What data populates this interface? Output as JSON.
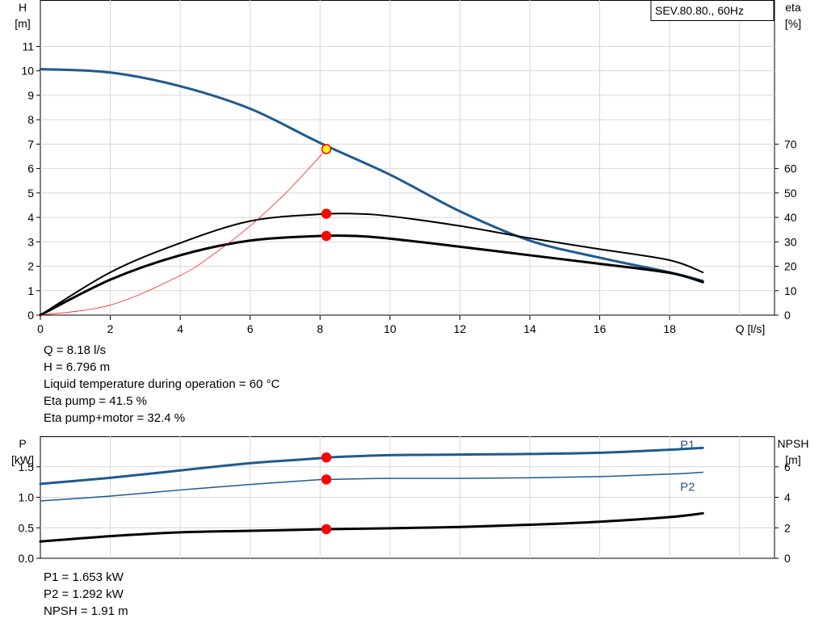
{
  "chart_data": [
    {
      "type": "line",
      "title": "SEV.80.80., 60Hz",
      "x_axis": {
        "label": "Q [l/s]",
        "range": [
          0,
          21
        ],
        "ticks": [
          0,
          2,
          4,
          6,
          8,
          10,
          12,
          14,
          16,
          18
        ]
      },
      "y_axis_left": {
        "label_top": "H",
        "label_bottom": "[m]",
        "range": [
          0,
          12.9
        ],
        "ticks": [
          0,
          1,
          2,
          3,
          4,
          5,
          6,
          7,
          8,
          9,
          10,
          11
        ]
      },
      "y_axis_right": {
        "label_top": "eta",
        "label_bottom": "[%]",
        "range": [
          0,
          129
        ],
        "ticks": [
          0,
          10,
          20,
          30,
          40,
          50,
          60,
          70
        ]
      },
      "grid": true,
      "series": [
        {
          "axis": "left",
          "color": "#1f5a8f",
          "width": 3,
          "points": [
            [
              0,
              10.07
            ],
            [
              2,
              9.93
            ],
            [
              4,
              9.37
            ],
            [
              6,
              8.45
            ],
            [
              8,
              7.05
            ],
            [
              10,
              5.75
            ],
            [
              12,
              4.25
            ],
            [
              14,
              3.05
            ],
            [
              16,
              2.35
            ],
            [
              18,
              1.75
            ],
            [
              18.95,
              1.4
            ]
          ]
        },
        {
          "axis": "right",
          "color": "#000000",
          "width": 2,
          "points": [
            [
              0,
              0
            ],
            [
              2,
              17.5
            ],
            [
              4,
              29.5
            ],
            [
              6,
              38.5
            ],
            [
              8,
              41.3
            ],
            [
              9,
              41.5
            ],
            [
              10,
              40.5
            ],
            [
              12,
              36.5
            ],
            [
              14,
              31.5
            ],
            [
              16,
              27
            ],
            [
              18,
              22.5
            ],
            [
              18.95,
              17.5
            ]
          ]
        },
        {
          "axis": "right",
          "color": "#000000",
          "width": 3,
          "points": [
            [
              0,
              0
            ],
            [
              2,
              14.5
            ],
            [
              4,
              24.5
            ],
            [
              6,
              30.5
            ],
            [
              8,
              32.4
            ],
            [
              9,
              32.4
            ],
            [
              10,
              31.3
            ],
            [
              12,
              28
            ],
            [
              14,
              24.5
            ],
            [
              16,
              21
            ],
            [
              18,
              17.3
            ],
            [
              18.95,
              13.5
            ]
          ]
        },
        {
          "axis": "left",
          "color": "#ff0000",
          "width": 0.7,
          "points": [
            [
              0,
              0
            ],
            [
              2,
              0.41
            ],
            [
              4,
              1.62
            ],
            [
              5,
              2.54
            ],
            [
              6,
              3.65
            ],
            [
              7,
              4.97
            ],
            [
              8,
              6.5
            ],
            [
              8.18,
              6.796
            ]
          ]
        }
      ],
      "markers": [
        {
          "axis": "left",
          "x": 8.18,
          "y": 6.796,
          "fill": "#ffff00",
          "stroke": "#ff0000"
        },
        {
          "axis": "right",
          "x": 8.18,
          "y": 41.5,
          "fill": "#ff0000",
          "stroke": "#ff0000"
        },
        {
          "axis": "right",
          "x": 8.18,
          "y": 32.4,
          "fill": "#ff0000",
          "stroke": "#ff0000"
        }
      ]
    },
    {
      "type": "line",
      "x_axis": {
        "range": [
          0,
          21
        ]
      },
      "y_axis_left": {
        "label_top": "P",
        "label_bottom": "[kW]",
        "range": [
          0,
          2.0
        ],
        "ticks": [
          0.0,
          0.5,
          1.0,
          1.5
        ],
        "tick_labels": [
          "0.0",
          "0.5",
          "1.0",
          "1.5"
        ]
      },
      "y_axis_right": {
        "label_top": "NPSH",
        "label_bottom": "[m]",
        "range": [
          0,
          8
        ],
        "ticks": [
          0,
          2,
          4,
          6
        ]
      },
      "grid": true,
      "series": [
        {
          "name": "P1",
          "axis": "left",
          "color": "#1f5a8f",
          "width": 3,
          "points": [
            [
              0,
              1.22
            ],
            [
              2,
              1.32
            ],
            [
              4,
              1.44
            ],
            [
              6,
              1.56
            ],
            [
              8,
              1.64
            ],
            [
              8.18,
              1.653
            ],
            [
              10,
              1.69
            ],
            [
              12,
              1.7
            ],
            [
              14,
              1.71
            ],
            [
              16,
              1.73
            ],
            [
              18,
              1.78
            ],
            [
              18.95,
              1.81
            ]
          ]
        },
        {
          "name": "P2",
          "axis": "left",
          "color": "#1f5a8f",
          "width": 1.5,
          "points": [
            [
              0,
              0.94
            ],
            [
              2,
              1.02
            ],
            [
              4,
              1.12
            ],
            [
              6,
              1.21
            ],
            [
              8,
              1.29
            ],
            [
              8.18,
              1.292
            ],
            [
              10,
              1.31
            ],
            [
              12,
              1.31
            ],
            [
              14,
              1.32
            ],
            [
              16,
              1.34
            ],
            [
              18,
              1.38
            ],
            [
              18.95,
              1.41
            ]
          ]
        },
        {
          "axis": "right",
          "color": "#000000",
          "width": 3,
          "points": [
            [
              0,
              1.1
            ],
            [
              2,
              1.45
            ],
            [
              4,
              1.7
            ],
            [
              6,
              1.8
            ],
            [
              8,
              1.9
            ],
            [
              8.18,
              1.91
            ],
            [
              10,
              1.97
            ],
            [
              12,
              2.05
            ],
            [
              14,
              2.2
            ],
            [
              16,
              2.4
            ],
            [
              18,
              2.7
            ],
            [
              18.95,
              2.95
            ]
          ]
        }
      ],
      "markers": [
        {
          "axis": "left",
          "x": 8.18,
          "y": 1.653,
          "fill": "#ff0000",
          "stroke": "#ff0000"
        },
        {
          "axis": "left",
          "x": 8.18,
          "y": 1.292,
          "fill": "#ff0000",
          "stroke": "#ff0000"
        },
        {
          "axis": "right",
          "x": 8.18,
          "y": 1.91,
          "fill": "#ff0000",
          "stroke": "#ff0000"
        }
      ],
      "series_labels": [
        {
          "text": "P1",
          "x": 18.3,
          "y": 1.86,
          "color": "#1f5a8f"
        },
        {
          "text": "P2",
          "x": 18.3,
          "y": 1.17,
          "color": "#1f5a8f"
        }
      ]
    }
  ],
  "info_top": [
    "Q = 8.18 l/s",
    "H = 6.796 m",
    "Liquid temperature during operation = 60 °C",
    "Eta pump = 41.5 %",
    "Eta pump+motor = 32.4 %"
  ],
  "info_bottom": [
    "P1 = 1.653 kW",
    "P2 = 1.292 kW",
    "NPSH = 1.91 m"
  ]
}
